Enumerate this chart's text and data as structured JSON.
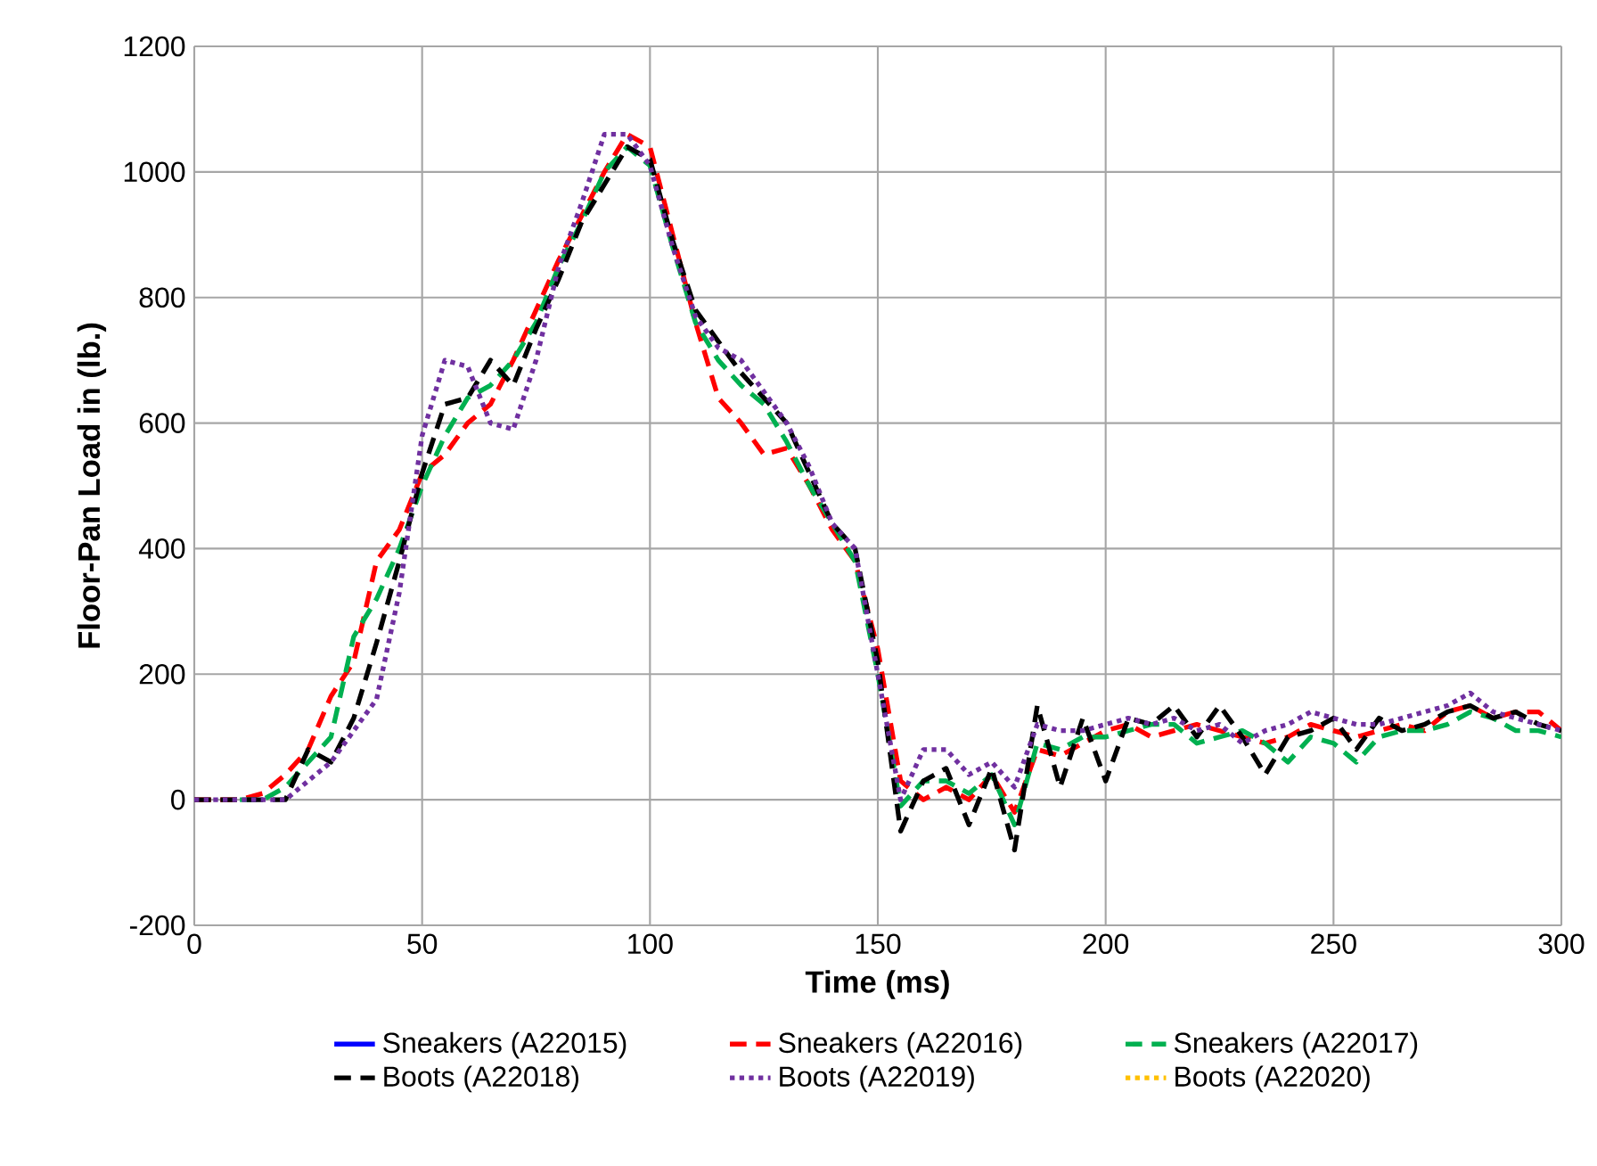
{
  "chart_data": {
    "type": "line",
    "xlabel": "Time (ms)",
    "ylabel": "Floor-Pan Load in (lb.)",
    "x": [
      0,
      5,
      10,
      15,
      20,
      25,
      30,
      35,
      40,
      45,
      50,
      55,
      60,
      65,
      70,
      75,
      80,
      85,
      90,
      95,
      100,
      105,
      110,
      115,
      120,
      125,
      130,
      135,
      140,
      145,
      150,
      155,
      160,
      165,
      170,
      175,
      180,
      185,
      190,
      195,
      200,
      205,
      210,
      215,
      220,
      225,
      230,
      235,
      240,
      245,
      250,
      255,
      260,
      265,
      270,
      275,
      280,
      285,
      290,
      295,
      300
    ],
    "xlim": [
      0,
      300
    ],
    "ylim": [
      -200,
      1200
    ],
    "xticks": [
      0,
      50,
      100,
      150,
      200,
      250,
      300
    ],
    "yticks": [
      -200,
      0,
      200,
      400,
      600,
      800,
      1000,
      1200
    ],
    "grid": true,
    "legend": "bottom",
    "marker": "none",
    "series": [
      {
        "name": "Sneakers (A22015)",
        "color": "#0000ff",
        "line_style": "solid",
        "values": [
          null,
          null,
          null,
          null,
          null,
          null,
          null,
          null,
          null,
          null,
          null,
          null,
          null,
          null,
          null,
          null,
          null,
          null,
          null,
          null,
          null,
          null,
          null,
          null,
          null,
          null,
          null,
          null,
          null,
          null,
          null,
          null,
          null,
          null,
          null,
          null,
          null,
          null,
          null,
          null,
          null,
          null,
          null,
          null,
          null,
          null,
          null,
          null,
          null,
          null,
          null,
          null,
          null,
          null,
          null,
          null,
          null,
          null,
          null,
          null,
          null
        ]
      },
      {
        "name": "Sneakers (A22016)",
        "color": "#ff0000",
        "line_style": "dashed",
        "values": [
          0,
          0,
          0,
          10,
          40,
          80,
          165,
          220,
          380,
          430,
          520,
          550,
          600,
          630,
          700,
          780,
          860,
          930,
          1000,
          1060,
          1040,
          900,
          760,
          640,
          600,
          550,
          560,
          500,
          430,
          380,
          240,
          30,
          0,
          20,
          0,
          40,
          -20,
          80,
          70,
          90,
          110,
          120,
          100,
          110,
          120,
          110,
          100,
          90,
          100,
          120,
          110,
          100,
          110,
          120,
          110,
          140,
          150,
          130,
          140,
          140,
          110
        ]
      },
      {
        "name": "Sneakers (A22017)",
        "color": "#00b050",
        "line_style": "dashed",
        "values": [
          null,
          null,
          0,
          0,
          20,
          60,
          100,
          260,
          320,
          400,
          500,
          580,
          640,
          660,
          700,
          760,
          850,
          920,
          1000,
          1040,
          1010,
          880,
          760,
          700,
          660,
          630,
          570,
          500,
          440,
          380,
          200,
          -10,
          30,
          30,
          10,
          40,
          -40,
          90,
          80,
          100,
          100,
          110,
          120,
          120,
          90,
          100,
          110,
          90,
          60,
          100,
          90,
          60,
          100,
          110,
          110,
          120,
          140,
          130,
          110,
          110,
          100
        ]
      },
      {
        "name": "Boots (A22018)",
        "color": "#000000",
        "line_style": "dashed",
        "values": [
          0,
          0,
          0,
          0,
          0,
          80,
          60,
          130,
          250,
          380,
          520,
          630,
          640,
          700,
          660,
          750,
          830,
          920,
          980,
          1040,
          1020,
          890,
          780,
          730,
          680,
          640,
          600,
          520,
          440,
          400,
          220,
          -50,
          30,
          50,
          -40,
          50,
          -80,
          150,
          20,
          130,
          30,
          130,
          120,
          150,
          100,
          150,
          100,
          40,
          100,
          110,
          130,
          80,
          130,
          110,
          120,
          140,
          150,
          130,
          140,
          120,
          110
        ]
      },
      {
        "name": "Boots (A22019)",
        "color": "#7030a0",
        "line_style": "dotted",
        "values": [
          0,
          0,
          0,
          0,
          0,
          30,
          60,
          110,
          160,
          330,
          580,
          700,
          690,
          600,
          590,
          700,
          850,
          950,
          1060,
          1060,
          1010,
          880,
          770,
          720,
          700,
          650,
          600,
          530,
          440,
          400,
          200,
          0,
          80,
          80,
          40,
          60,
          20,
          120,
          110,
          110,
          120,
          130,
          120,
          130,
          110,
          120,
          90,
          110,
          120,
          140,
          130,
          120,
          120,
          130,
          140,
          150,
          170,
          140,
          130,
          120,
          110
        ]
      },
      {
        "name": "Boots (A22020)",
        "color": "#ffc000",
        "line_style": "dotted",
        "values": [
          null,
          null,
          null,
          null,
          null,
          null,
          null,
          null,
          null,
          null,
          null,
          null,
          null,
          null,
          null,
          null,
          null,
          null,
          null,
          null,
          null,
          null,
          null,
          null,
          null,
          null,
          null,
          null,
          null,
          null,
          null,
          null,
          null,
          null,
          null,
          null,
          null,
          null,
          null,
          null,
          null,
          null,
          null,
          null,
          null,
          null,
          null,
          null,
          null,
          null,
          null,
          null,
          null,
          null,
          null,
          null,
          null,
          null,
          null,
          null,
          null
        ]
      }
    ]
  }
}
